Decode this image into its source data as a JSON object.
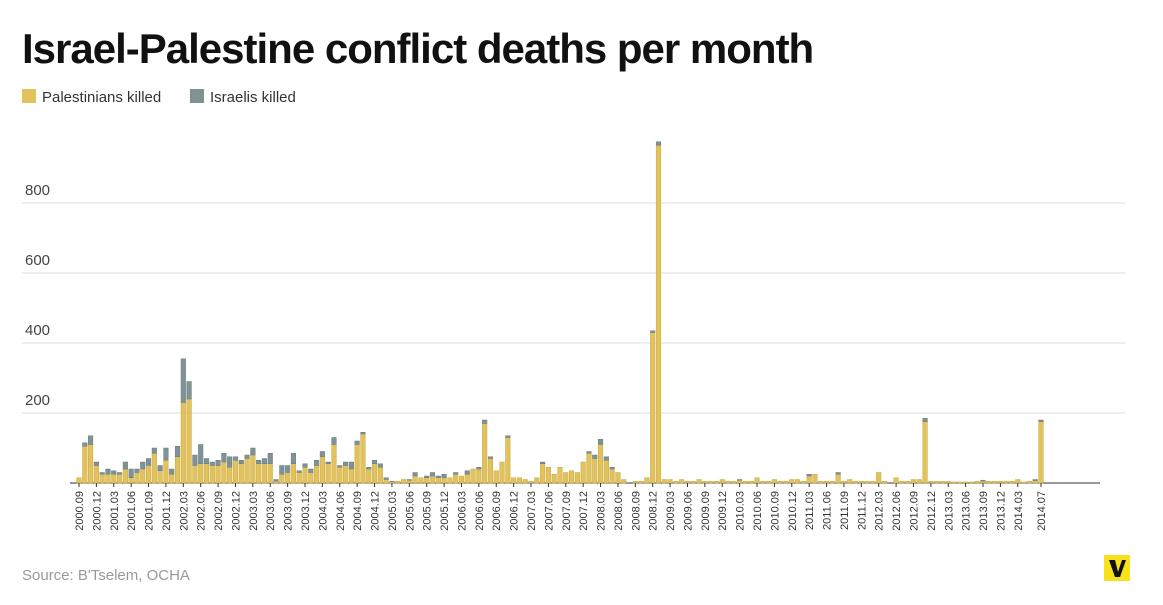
{
  "chart_data": {
    "type": "stacked-bar",
    "title": "Israel-Palestine conflict deaths per month",
    "source": "Source: B'Tselem, OCHA",
    "categories": [
      "2000.09",
      null,
      null,
      "2000.12",
      null,
      null,
      "2001.03",
      null,
      null,
      "2001.06",
      null,
      null,
      "2001.09",
      null,
      null,
      "2001.12",
      null,
      null,
      "2002.03",
      null,
      null,
      "2002.06",
      null,
      null,
      "2002.09",
      null,
      null,
      "2002.12",
      null,
      null,
      "2003.03",
      null,
      null,
      "2003.06",
      null,
      null,
      "2003.09",
      null,
      null,
      "2003.12",
      null,
      null,
      "2004.03",
      null,
      null,
      "2004.06",
      null,
      null,
      "2004.09",
      null,
      null,
      "2004.12",
      null,
      null,
      "2005.03",
      null,
      null,
      "2005.06",
      null,
      null,
      "2005.09",
      null,
      null,
      "2005.12",
      null,
      null,
      "2006.03",
      null,
      null,
      "2006.06",
      null,
      null,
      "2006.09",
      null,
      null,
      "2006.12",
      null,
      null,
      "2007.03",
      null,
      null,
      "2007.06",
      null,
      null,
      "2007.09",
      null,
      null,
      "2007.12",
      null,
      null,
      "2008.03",
      null,
      null,
      "2008.06",
      null,
      null,
      "2008.09",
      null,
      null,
      "2008.12",
      null,
      null,
      "2009.03",
      null,
      null,
      "2009.06",
      null,
      null,
      "2009.09",
      null,
      null,
      "2009.12",
      null,
      null,
      "2010.03",
      null,
      null,
      "2010.06",
      null,
      null,
      "2010.09",
      null,
      null,
      "2010.12",
      null,
      null,
      "2011.03",
      null,
      null,
      "2011.06",
      null,
      null,
      "2011.09",
      null,
      null,
      "2011.12",
      null,
      null,
      "2012.03",
      null,
      null,
      "2012.06",
      null,
      null,
      "2012.09",
      null,
      null,
      "2012.12",
      null,
      null,
      "2013.03",
      null,
      null,
      "2013.06",
      null,
      null,
      "2013.09",
      null,
      null,
      "2013.12",
      null,
      null,
      "2014.03",
      null,
      null,
      null,
      "2014.07"
    ],
    "series": [
      {
        "name": "Palestinians killed",
        "color": "#e2c25c",
        "values": [
          15,
          105,
          110,
          50,
          25,
          25,
          25,
          25,
          40,
          15,
          30,
          40,
          50,
          85,
          35,
          65,
          25,
          75,
          230,
          240,
          50,
          55,
          55,
          50,
          50,
          60,
          45,
          65,
          55,
          70,
          80,
          55,
          55,
          55,
          5,
          25,
          30,
          55,
          30,
          45,
          30,
          50,
          75,
          55,
          110,
          45,
          50,
          40,
          110,
          140,
          40,
          55,
          45,
          10,
          4,
          5,
          10,
          8,
          20,
          15,
          15,
          20,
          15,
          15,
          15,
          25,
          20,
          25,
          40,
          40,
          170,
          70,
          35,
          60,
          130,
          15,
          15,
          10,
          5,
          15,
          55,
          45,
          25,
          45,
          30,
          35,
          30,
          60,
          85,
          70,
          110,
          65,
          40,
          30,
          10,
          0,
          5,
          5,
          15,
          430,
          965,
          10,
          10,
          5,
          10,
          5,
          5,
          10,
          5,
          5,
          5,
          10,
          5,
          5,
          8,
          5,
          5,
          15,
          5,
          5,
          10,
          5,
          5,
          10,
          10,
          5,
          20,
          25,
          5,
          5,
          5,
          25,
          5,
          10,
          5,
          5,
          5,
          5,
          30,
          5,
          0,
          15,
          5,
          5,
          10,
          10,
          175,
          5,
          5,
          5,
          5,
          3,
          3,
          3,
          3,
          5,
          5,
          5,
          5,
          5,
          5,
          5,
          10,
          3,
          5,
          7,
          175
        ]
      },
      {
        "name": "Israelis killed",
        "color": "#7f9397",
        "values": [
          0,
          10,
          25,
          10,
          5,
          15,
          10,
          5,
          20,
          25,
          10,
          20,
          20,
          15,
          15,
          35,
          15,
          30,
          125,
          50,
          30,
          55,
          15,
          10,
          15,
          25,
          30,
          10,
          10,
          10,
          20,
          10,
          15,
          30,
          5,
          25,
          20,
          30,
          5,
          10,
          10,
          15,
          15,
          5,
          20,
          5,
          10,
          20,
          10,
          5,
          5,
          10,
          10,
          5,
          1,
          0,
          0,
          2,
          10,
          0,
          5,
          10,
          5,
          10,
          0,
          5,
          0,
          10,
          0,
          5,
          10,
          5,
          0,
          0,
          5,
          0,
          0,
          0,
          0,
          0,
          5,
          0,
          0,
          0,
          0,
          0,
          0,
          0,
          5,
          10,
          15,
          10,
          5,
          0,
          0,
          0,
          0,
          0,
          0,
          5,
          10,
          0,
          0,
          0,
          0,
          0,
          0,
          0,
          0,
          0,
          0,
          0,
          0,
          0,
          2,
          0,
          0,
          0,
          0,
          0,
          0,
          0,
          0,
          0,
          0,
          0,
          5,
          0,
          0,
          0,
          0,
          5,
          0,
          0,
          0,
          0,
          0,
          0,
          0,
          0,
          0,
          0,
          0,
          0,
          0,
          0,
          10,
          0,
          0,
          0,
          0,
          0,
          0,
          0,
          0,
          0,
          3,
          0,
          0,
          0,
          0,
          0,
          0,
          0,
          0,
          3,
          5
        ]
      }
    ],
    "ylim": [
      0,
      1000
    ],
    "yticks": [
      200,
      400,
      600,
      800
    ],
    "grid": true
  }
}
